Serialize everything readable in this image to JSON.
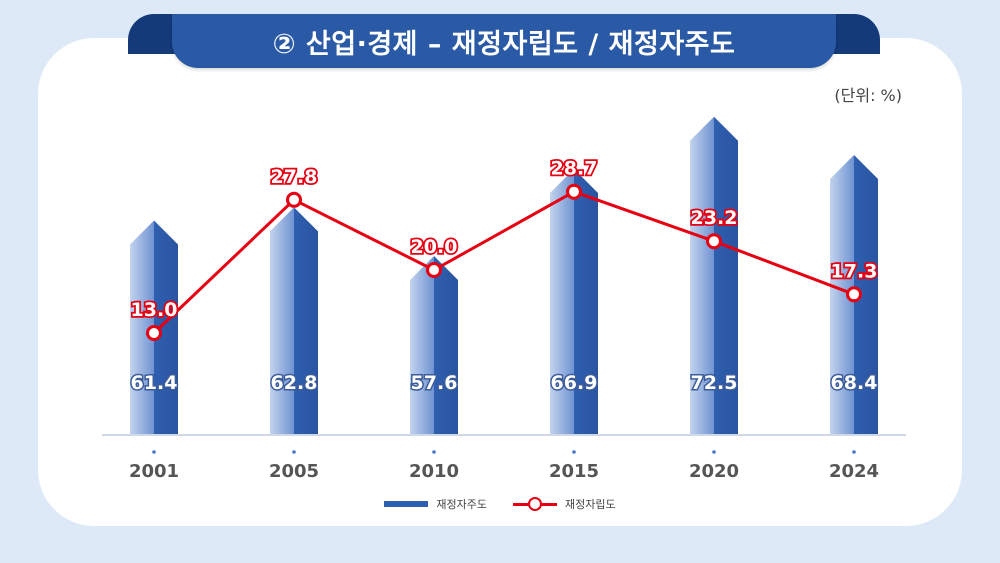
{
  "page": {
    "title": "② 산업·경제 – 재정자립도 / 재정자주도",
    "unit": "(단위: %)"
  },
  "colors": {
    "background": "#dde9f6",
    "card": "#ffffff",
    "title_bg": "#2a59a6",
    "bar": "#2f5fb0",
    "line": "#e60012"
  },
  "chart_data": {
    "type": "bar",
    "categories": [
      "2001",
      "2005",
      "2010",
      "2015",
      "2020",
      "2024"
    ],
    "series": [
      {
        "name": "재정자주도",
        "type": "bar",
        "values": [
          61.4,
          62.8,
          57.6,
          66.9,
          72.5,
          68.4
        ]
      },
      {
        "name": "재정자립도",
        "type": "line",
        "values": [
          13.0,
          27.8,
          20.0,
          28.7,
          23.2,
          17.3
        ]
      }
    ],
    "value_labels": {
      "bar": [
        "61.4",
        "62.8",
        "57.6",
        "66.9",
        "72.5",
        "68.4"
      ],
      "line": [
        "13.0",
        "27.8",
        "20.0",
        "28.7",
        "23.2",
        "17.3"
      ]
    },
    "legend": {
      "placement": "bottom-center"
    },
    "grid": false
  }
}
